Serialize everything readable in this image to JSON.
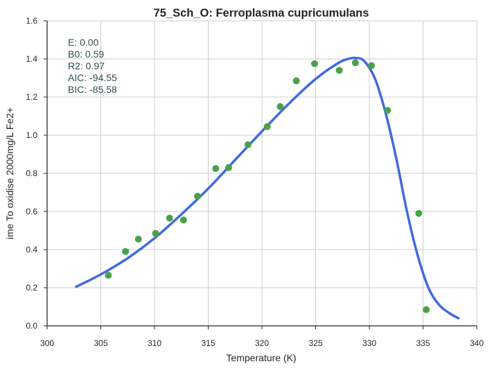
{
  "chart_data": {
    "type": "scatter",
    "title": "75_Sch_O: Ferroplasma cupricumulans",
    "xlabel": "Temperature (K)",
    "ylabel": "ime To oxidise 2000mg/L Fe2+",
    "xlim": [
      300,
      340
    ],
    "ylim": [
      0.0,
      1.6
    ],
    "xticks": [
      "300",
      "305",
      "310",
      "315",
      "320",
      "325",
      "330",
      "335",
      "340"
    ],
    "yticks": [
      "0.0",
      "0.2",
      "0.4",
      "0.6",
      "0.8",
      "1.0",
      "1.2",
      "1.4",
      "1.6"
    ],
    "grid": true,
    "annotation": [
      "E:  0.00",
      "B0:  0.59",
      "R2:  0.97",
      "AIC: -94.55",
      "BIC: -85.58"
    ],
    "colors": {
      "points": "#4aa14a",
      "fit": "#4169e1",
      "grid": "#cccccc",
      "annotation": "#2f4f4f"
    },
    "series": [
      {
        "kind": "points",
        "x": [
          305.7,
          307.3,
          308.5,
          310.1,
          311.4,
          312.7,
          314.0,
          315.7,
          316.9,
          318.7,
          320.5,
          321.7,
          323.2,
          324.9,
          327.2,
          328.7,
          330.2,
          331.7,
          334.6,
          335.3
        ],
        "y": [
          0.265,
          0.39,
          0.455,
          0.485,
          0.565,
          0.555,
          0.68,
          0.825,
          0.83,
          0.95,
          1.045,
          1.15,
          1.285,
          1.375,
          1.34,
          1.38,
          1.365,
          1.13,
          0.59,
          0.085
        ]
      },
      {
        "kind": "fit-line",
        "x": [
          302.7,
          305.0,
          307.5,
          310.0,
          312.5,
          315.0,
          317.5,
          320.0,
          322.5,
          325.0,
          327.0,
          328.0,
          328.7,
          329.5,
          330.5,
          331.5,
          332.5,
          333.5,
          334.5,
          335.5,
          336.5,
          337.5,
          338.3
        ],
        "y": [
          0.205,
          0.27,
          0.355,
          0.46,
          0.585,
          0.72,
          0.87,
          1.02,
          1.165,
          1.295,
          1.375,
          1.4,
          1.405,
          1.39,
          1.3,
          1.12,
          0.88,
          0.6,
          0.37,
          0.2,
          0.11,
          0.065,
          0.04
        ]
      }
    ]
  }
}
